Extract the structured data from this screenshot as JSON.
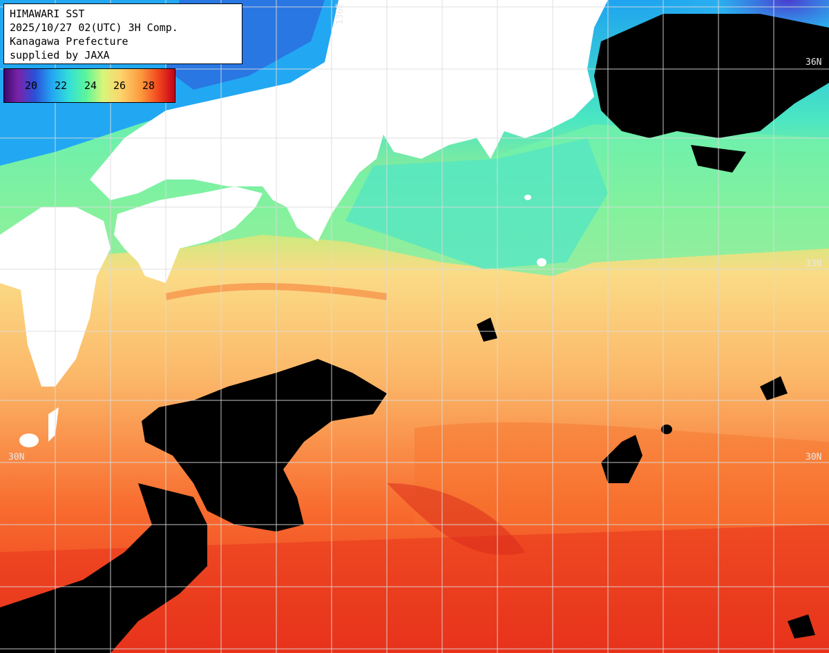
{
  "header": {
    "line1": "HIMAWARI SST",
    "line2": "2025/10/27 02(UTC) 3H Comp.",
    "line3": "Kanagawa Prefecture",
    "line4": "supplied by JAXA"
  },
  "legend": {
    "ticks": [
      "20",
      "22",
      "24",
      "26",
      "28"
    ],
    "colors": [
      "#3a0a6a",
      "#2c4fd8",
      "#23a6f2",
      "#33e0d8",
      "#5cf59a",
      "#d9f57a",
      "#fcd56d",
      "#fb9b3e",
      "#f24a1e",
      "#c4001a"
    ]
  },
  "grid_labels": {
    "lon": "136E",
    "lat_36": "36N",
    "lat_33": "33N",
    "lat_30_left": "30N",
    "lat_30_right": "30N"
  },
  "map_colors": {
    "land": "#ffffff",
    "cloud": "#000000",
    "grid": "#d8d8d8"
  }
}
